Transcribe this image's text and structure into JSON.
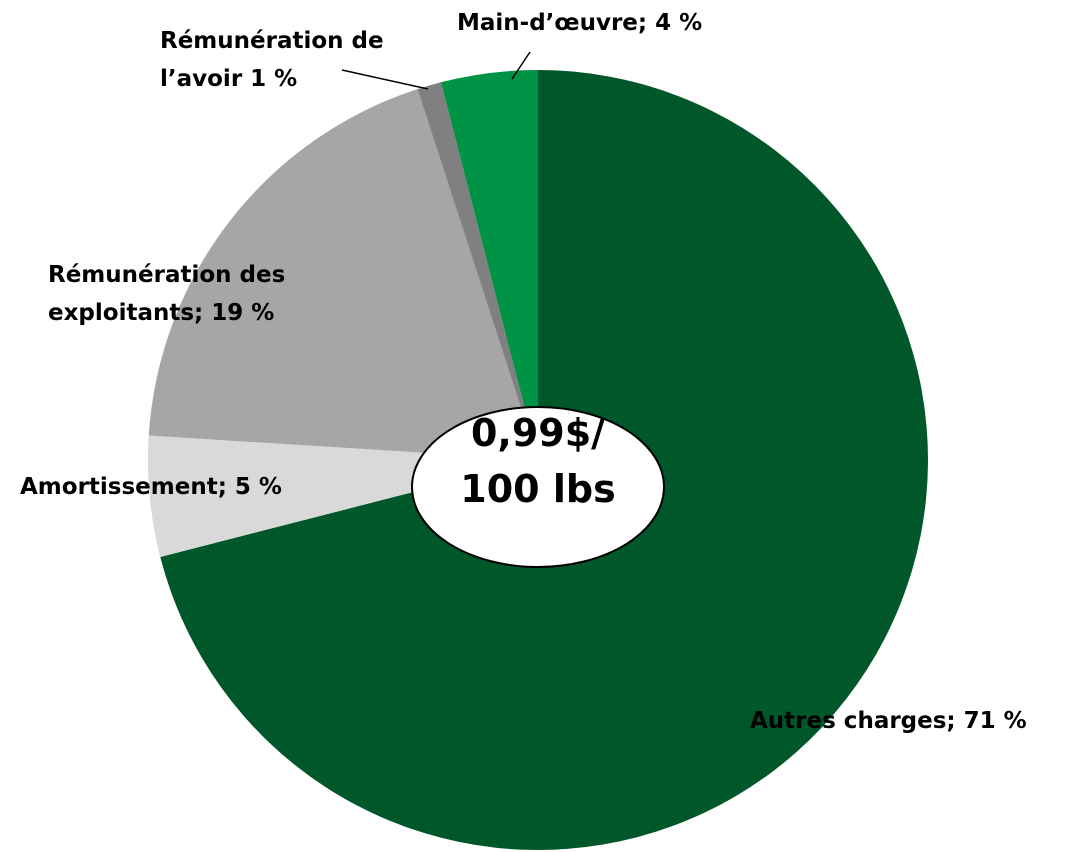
{
  "chart_data": {
    "type": "pie",
    "categories": [
      "Autres charges; 71 %",
      "Amortissement; 5 %",
      "Rémunération des\nexploitants; 19 %",
      "Rémunération de\nl’avoir 1 %",
      "Main-d’œuvre; 4 %"
    ],
    "values": [
      71,
      5,
      19,
      1,
      4
    ],
    "colors": [
      "#00572a",
      "#d9d9d9",
      "#a6a6a6",
      "#808080",
      "#009245"
    ],
    "annotation": "0,99$/\n100 lbs"
  }
}
